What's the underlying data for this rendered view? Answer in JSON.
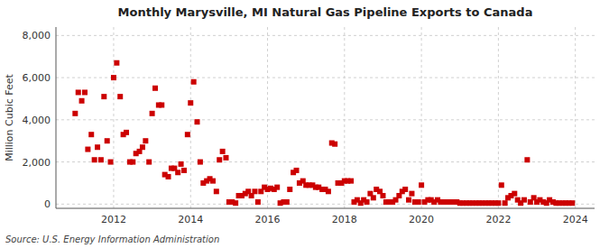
{
  "chart_data": {
    "type": "scatter",
    "title": "Monthly Marysville, MI Natural Gas Pipeline Exports to Canada",
    "y_label": "Million Cubic Feet",
    "annotations": [
      "Source: U.S. Energy Information Administration"
    ],
    "color": "#cc0000",
    "marker": "square",
    "grid": true,
    "xlim": [
      2010.5,
      2024.5
    ],
    "ylim": [
      -200,
      8400
    ],
    "xticks": [
      2012,
      2014,
      2016,
      2018,
      2020,
      2022,
      2024
    ],
    "yticks": [
      0,
      {
        "value": 2000,
        "label": "2,000"
      },
      {
        "value": 4000,
        "label": "4,000"
      },
      {
        "value": 6000,
        "label": "6,000"
      },
      {
        "value": 8000,
        "label": "8,000"
      }
    ],
    "x": [
      2011.0,
      2011.08,
      2011.17,
      2011.25,
      2011.33,
      2011.42,
      2011.5,
      2011.58,
      2011.67,
      2011.75,
      2011.83,
      2011.92,
      2012.0,
      2012.08,
      2012.17,
      2012.25,
      2012.33,
      2012.42,
      2012.5,
      2012.58,
      2012.67,
      2012.75,
      2012.83,
      2012.92,
      2013.0,
      2013.08,
      2013.17,
      2013.25,
      2013.33,
      2013.42,
      2013.5,
      2013.58,
      2013.67,
      2013.75,
      2013.83,
      2013.92,
      2014.0,
      2014.08,
      2014.17,
      2014.25,
      2014.33,
      2014.42,
      2014.5,
      2014.58,
      2014.67,
      2014.75,
      2014.83,
      2014.92,
      2015.0,
      2015.08,
      2015.17,
      2015.25,
      2015.33,
      2015.42,
      2015.5,
      2015.58,
      2015.67,
      2015.75,
      2015.83,
      2015.92,
      2016.0,
      2016.08,
      2016.17,
      2016.25,
      2016.33,
      2016.42,
      2016.5,
      2016.58,
      2016.67,
      2016.75,
      2016.83,
      2016.92,
      2017.0,
      2017.08,
      2017.17,
      2017.25,
      2017.33,
      2017.42,
      2017.5,
      2017.58,
      2017.67,
      2017.75,
      2017.83,
      2017.92,
      2018.0,
      2018.08,
      2018.17,
      2018.25,
      2018.33,
      2018.42,
      2018.5,
      2018.58,
      2018.67,
      2018.75,
      2018.83,
      2018.92,
      2019.0,
      2019.08,
      2019.17,
      2019.25,
      2019.33,
      2019.42,
      2019.5,
      2019.58,
      2019.67,
      2019.75,
      2019.83,
      2019.92,
      2020.0,
      2020.08,
      2020.17,
      2020.25,
      2020.33,
      2020.42,
      2020.5,
      2020.58,
      2020.67,
      2020.75,
      2020.83,
      2020.92,
      2021.0,
      2021.08,
      2021.17,
      2021.25,
      2021.33,
      2021.42,
      2021.5,
      2021.58,
      2021.67,
      2021.75,
      2021.83,
      2021.92,
      2022.0,
      2022.08,
      2022.17,
      2022.25,
      2022.33,
      2022.42,
      2022.5,
      2022.58,
      2022.67,
      2022.75,
      2022.83,
      2022.92,
      2023.0,
      2023.08,
      2023.17,
      2023.25,
      2023.33,
      2023.42,
      2023.5,
      2023.58,
      2023.67,
      2023.75,
      2023.83,
      2023.92
    ],
    "values": [
      4300,
      5300,
      4900,
      5300,
      2600,
      3300,
      2100,
      2700,
      2100,
      5100,
      3000,
      2000,
      6000,
      6700,
      5100,
      3300,
      3400,
      2000,
      2000,
      2400,
      2500,
      2700,
      3000,
      2000,
      4300,
      5500,
      4700,
      4700,
      1400,
      1300,
      1700,
      1700,
      1500,
      1900,
      1600,
      3300,
      4800,
      5800,
      3900,
      2000,
      1000,
      1100,
      1200,
      1100,
      600,
      2100,
      2500,
      2200,
      100,
      100,
      50,
      400,
      400,
      500,
      600,
      400,
      600,
      100,
      600,
      800,
      700,
      750,
      700,
      800,
      50,
      100,
      100,
      700,
      1500,
      1600,
      1000,
      1100,
      900,
      900,
      900,
      800,
      800,
      700,
      700,
      600,
      2900,
      2850,
      1000,
      1000,
      1100,
      1100,
      1100,
      100,
      200,
      50,
      200,
      100,
      500,
      300,
      700,
      600,
      400,
      100,
      100,
      100,
      200,
      400,
      600,
      700,
      200,
      500,
      100,
      100,
      900,
      100,
      200,
      200,
      100,
      200,
      100,
      100,
      100,
      100,
      100,
      100,
      50,
      50,
      50,
      50,
      50,
      50,
      50,
      50,
      50,
      50,
      50,
      50,
      50,
      900,
      50,
      300,
      400,
      500,
      200,
      50,
      200,
      2100,
      100,
      300,
      100,
      200,
      100,
      50,
      200,
      100,
      50,
      50,
      50,
      50,
      50,
      50
    ]
  }
}
